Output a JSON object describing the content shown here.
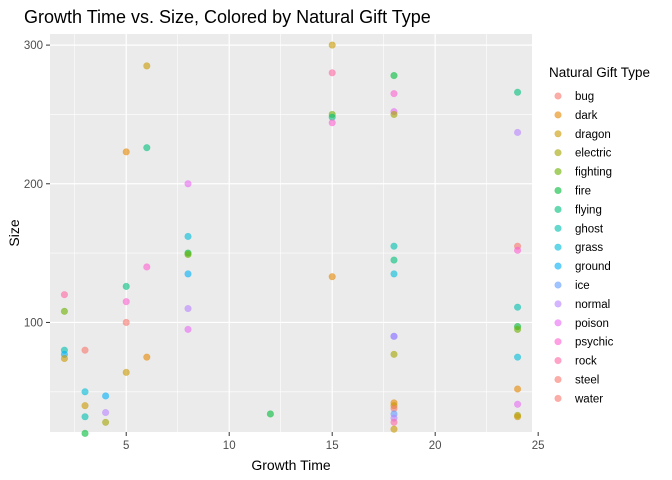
{
  "chart_data": {
    "type": "scatter",
    "title": "Growth Time vs. Size, Colored by Natural Gift Type",
    "xlabel": "Growth Time",
    "ylabel": "Size",
    "xlim": [
      1.3,
      24.7
    ],
    "ylim": [
      21,
      308
    ],
    "x_ticks": [
      5,
      10,
      15,
      20,
      25
    ],
    "y_ticks": [
      100,
      200,
      300
    ],
    "grid": true,
    "legend": {
      "title": "Natural Gift Type",
      "placement": "right",
      "entries": [
        {
          "name": "bug",
          "color": "#F8766D"
        },
        {
          "name": "dark",
          "color": "#E58700"
        },
        {
          "name": "dragon",
          "color": "#C99800"
        },
        {
          "name": "electric",
          "color": "#A3A500"
        },
        {
          "name": "fighting",
          "color": "#6BB100"
        },
        {
          "name": "fire",
          "color": "#00BA38"
        },
        {
          "name": "flying",
          "color": "#00BF7D"
        },
        {
          "name": "ghost",
          "color": "#00C0AF"
        },
        {
          "name": "grass",
          "color": "#00BCD8"
        },
        {
          "name": "ground",
          "color": "#00B0F6"
        },
        {
          "name": "ice",
          "color": "#619CFF"
        },
        {
          "name": "normal",
          "color": "#B983FF"
        },
        {
          "name": "poison",
          "color": "#E76BF3"
        },
        {
          "name": "psychic",
          "color": "#FD61D1"
        },
        {
          "name": "rock",
          "color": "#FF67A4"
        },
        {
          "name": "steel",
          "color": "#F8766D"
        },
        {
          "name": "water",
          "color": "#F8766D"
        }
      ]
    },
    "points": [
      {
        "x": 2,
        "y": 120,
        "color": "#FF67A4"
      },
      {
        "x": 2,
        "y": 108,
        "color": "#6BB100"
      },
      {
        "x": 2,
        "y": 80,
        "color": "#00C0AF"
      },
      {
        "x": 2,
        "y": 77,
        "color": "#00B0F6"
      },
      {
        "x": 2,
        "y": 74,
        "color": "#C99800"
      },
      {
        "x": 3,
        "y": 80,
        "color": "#F8766D"
      },
      {
        "x": 3,
        "y": 50,
        "color": "#00BCD8"
      },
      {
        "x": 3,
        "y": 40,
        "color": "#C99800"
      },
      {
        "x": 3,
        "y": 32,
        "color": "#00C0AF"
      },
      {
        "x": 3,
        "y": 20,
        "color": "#00BA38"
      },
      {
        "x": 4,
        "y": 47,
        "color": "#00B0F6"
      },
      {
        "x": 4,
        "y": 35,
        "color": "#B983FF"
      },
      {
        "x": 4,
        "y": 28,
        "color": "#A3A500"
      },
      {
        "x": 5,
        "y": 223,
        "color": "#E58700"
      },
      {
        "x": 5,
        "y": 126,
        "color": "#00BF7D"
      },
      {
        "x": 5,
        "y": 115,
        "color": "#FD61D1"
      },
      {
        "x": 5,
        "y": 100,
        "color": "#F8766D"
      },
      {
        "x": 5,
        "y": 64,
        "color": "#C99800"
      },
      {
        "x": 6,
        "y": 285,
        "color": "#C99800"
      },
      {
        "x": 6,
        "y": 226,
        "color": "#00BF7D"
      },
      {
        "x": 6,
        "y": 140,
        "color": "#FD61D1"
      },
      {
        "x": 6,
        "y": 75,
        "color": "#E58700"
      },
      {
        "x": 8,
        "y": 200,
        "color": "#E76BF3"
      },
      {
        "x": 8,
        "y": 162,
        "color": "#00BCD8"
      },
      {
        "x": 8,
        "y": 150,
        "color": "#00BA38"
      },
      {
        "x": 8,
        "y": 149,
        "color": "#6BB100"
      },
      {
        "x": 8,
        "y": 135,
        "color": "#00B0F6"
      },
      {
        "x": 8,
        "y": 110,
        "color": "#B983FF"
      },
      {
        "x": 8,
        "y": 95,
        "color": "#E76BF3"
      },
      {
        "x": 12,
        "y": 34,
        "color": "#00BA38"
      },
      {
        "x": 15,
        "y": 300,
        "color": "#C99800"
      },
      {
        "x": 15,
        "y": 280,
        "color": "#FF67A4"
      },
      {
        "x": 15,
        "y": 250,
        "color": "#6BB100"
      },
      {
        "x": 15,
        "y": 248,
        "color": "#00BF7D"
      },
      {
        "x": 15,
        "y": 244,
        "color": "#FD61D1"
      },
      {
        "x": 15,
        "y": 133,
        "color": "#E58700"
      },
      {
        "x": 18,
        "y": 278,
        "color": "#00BA38"
      },
      {
        "x": 18,
        "y": 265,
        "color": "#FD61D1"
      },
      {
        "x": 18,
        "y": 252,
        "color": "#E76BF3"
      },
      {
        "x": 18,
        "y": 250,
        "color": "#A3A500"
      },
      {
        "x": 18,
        "y": 155,
        "color": "#00C0AF"
      },
      {
        "x": 18,
        "y": 145,
        "color": "#00BF7D"
      },
      {
        "x": 18,
        "y": 135,
        "color": "#00BCD8"
      },
      {
        "x": 18,
        "y": 90,
        "color": "#619CFF"
      },
      {
        "x": 18,
        "y": 90,
        "color": "#B983FF"
      },
      {
        "x": 18,
        "y": 77,
        "color": "#A3A500"
      },
      {
        "x": 18,
        "y": 42,
        "color": "#E58700"
      },
      {
        "x": 18,
        "y": 40,
        "color": "#C99800"
      },
      {
        "x": 18,
        "y": 38,
        "color": "#F8766D"
      },
      {
        "x": 18,
        "y": 34,
        "color": "#619CFF"
      },
      {
        "x": 18,
        "y": 31,
        "color": "#B983FF"
      },
      {
        "x": 18,
        "y": 28,
        "color": "#FF67A4"
      },
      {
        "x": 18,
        "y": 23,
        "color": "#C99800"
      },
      {
        "x": 24,
        "y": 266,
        "color": "#00BF7D"
      },
      {
        "x": 24,
        "y": 237,
        "color": "#B983FF"
      },
      {
        "x": 24,
        "y": 155,
        "color": "#F8766D"
      },
      {
        "x": 24,
        "y": 152,
        "color": "#FD61D1"
      },
      {
        "x": 24,
        "y": 111,
        "color": "#00C0AF"
      },
      {
        "x": 24,
        "y": 97,
        "color": "#00BA38"
      },
      {
        "x": 24,
        "y": 95,
        "color": "#6BB100"
      },
      {
        "x": 24,
        "y": 75,
        "color": "#00BCD8"
      },
      {
        "x": 24,
        "y": 52,
        "color": "#E58700"
      },
      {
        "x": 24,
        "y": 41,
        "color": "#E76BF3"
      },
      {
        "x": 24,
        "y": 33,
        "color": "#A3A500"
      },
      {
        "x": 24,
        "y": 32,
        "color": "#C99800"
      }
    ]
  }
}
